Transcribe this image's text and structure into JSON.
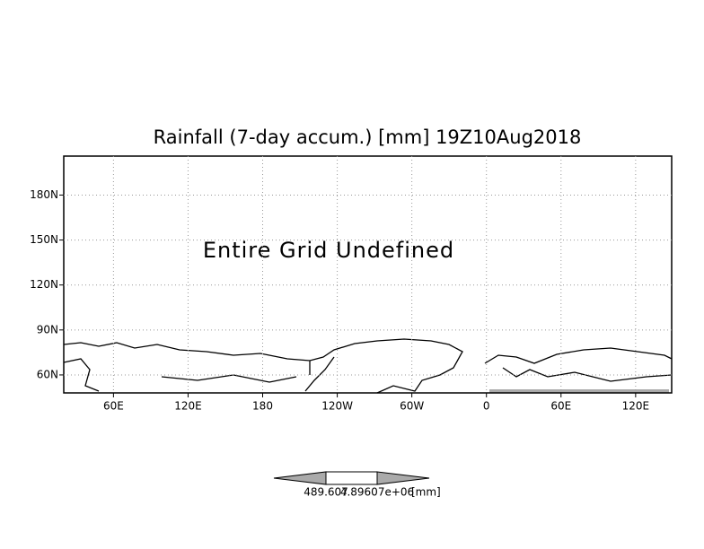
{
  "chart_data": {
    "type": "map",
    "title": "Rainfall (7-day accum.) [mm] 19Z10Aug2018",
    "annotation": "Entire Grid Undefined",
    "xlim": [
      20,
      509
    ],
    "ylim": [
      48,
      206
    ],
    "xticks": [
      {
        "value": 60,
        "label": "60E"
      },
      {
        "value": 120,
        "label": "120E"
      },
      {
        "value": 180,
        "label": "180"
      },
      {
        "value": 240,
        "label": "120W"
      },
      {
        "value": 300,
        "label": "60W"
      },
      {
        "value": 360,
        "label": "0"
      },
      {
        "value": 420,
        "label": "60E"
      },
      {
        "value": 480,
        "label": "120E"
      }
    ],
    "yticks": [
      {
        "value": 60,
        "label": "60N"
      },
      {
        "value": 90,
        "label": "90N"
      },
      {
        "value": 120,
        "label": "120N"
      },
      {
        "value": 150,
        "label": "150N"
      },
      {
        "value": 180,
        "label": "180N"
      }
    ],
    "grid": true,
    "colorbar": {
      "labels": [
        "489.607",
        "4.89607e+06"
      ],
      "unit": "[mm]",
      "color": "#aaaaaa"
    }
  }
}
